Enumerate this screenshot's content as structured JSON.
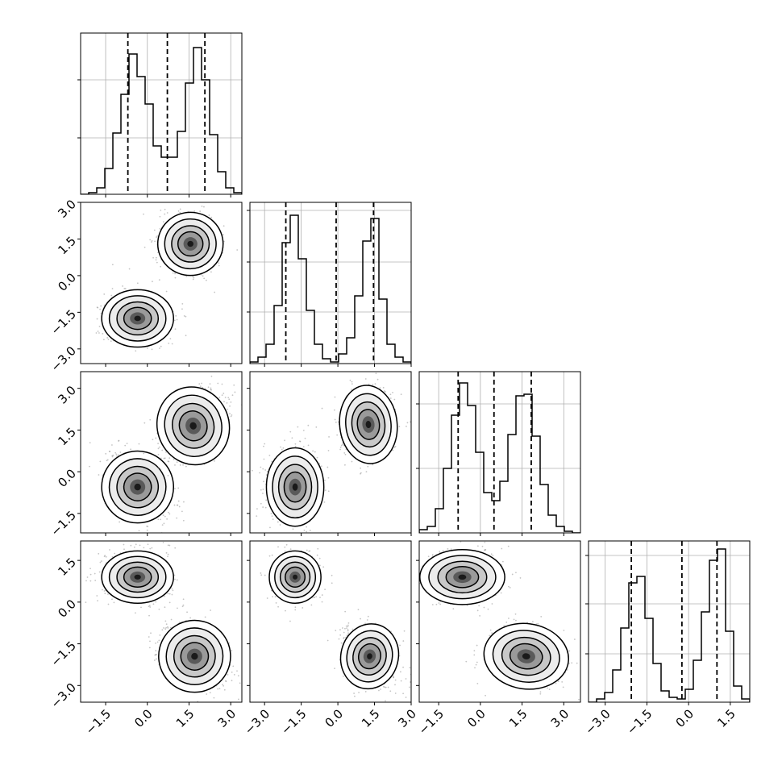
{
  "chart_data": {
    "type": "corner",
    "parameters": 4,
    "colors": {
      "frame": "#000000",
      "grid": "#b0b0b0",
      "hist": "#000000",
      "points": "#7f7f7f"
    },
    "grid": true,
    "quantile_lines": "dashed",
    "histograms": [
      {
        "param": 0,
        "x_range": [
          -2.4,
          3.4
        ],
        "y_range": [
          0,
          1.0
        ],
        "edges": [
          -2.4,
          -2.11,
          -1.82,
          -1.53,
          -1.24,
          -0.95,
          -0.66,
          -0.37,
          -0.08,
          0.21,
          0.5,
          0.79,
          1.08,
          1.37,
          1.66,
          1.95,
          2.24,
          2.53,
          2.82,
          3.11,
          3.4
        ],
        "counts": [
          0.0,
          0.01,
          0.04,
          0.16,
          0.38,
          0.62,
          0.87,
          0.73,
          0.56,
          0.3,
          0.23,
          0.23,
          0.39,
          0.69,
          0.91,
          0.71,
          0.37,
          0.14,
          0.04,
          0.01
        ],
        "quantiles": [
          -0.7,
          0.72,
          2.07
        ],
        "ticks": [
          -1.5,
          0.0,
          1.5,
          3.0
        ],
        "tick_labels": [
          "−1.5",
          "0.0",
          "1.5",
          "3.0"
        ],
        "y_ticks": [
          0.35,
          0.71
        ],
        "x_ticklabels_shown": false
      },
      {
        "param": 1,
        "x_range": [
          -3.6,
          3.0
        ],
        "y_range": [
          0,
          1.0
        ],
        "edges": [
          -3.6,
          -3.27,
          -2.94,
          -2.61,
          -2.28,
          -1.95,
          -1.62,
          -1.29,
          -0.96,
          -0.63,
          -0.3,
          0.03,
          0.36,
          0.69,
          1.02,
          1.35,
          1.68,
          2.01,
          2.34,
          2.67,
          3.0
        ],
        "counts": [
          0.01,
          0.04,
          0.12,
          0.36,
          0.75,
          0.92,
          0.65,
          0.33,
          0.12,
          0.03,
          0.01,
          0.06,
          0.16,
          0.42,
          0.76,
          0.9,
          0.4,
          0.12,
          0.04,
          0.01
        ],
        "quantiles": [
          -2.13,
          -0.07,
          1.46
        ],
        "ticks": [
          -3.0,
          -1.5,
          0.0,
          1.5,
          3.0
        ],
        "tick_labels": [
          "−3.0",
          "−1.5",
          "0.0",
          "1.5",
          "3.0"
        ],
        "y_ticks": [
          0.32,
          0.63,
          0.95
        ],
        "x_ticklabels_shown": false
      },
      {
        "param": 2,
        "x_range": [
          -2.2,
          3.6
        ],
        "y_range": [
          0,
          1.0
        ],
        "edges": [
          -2.2,
          -1.91,
          -1.62,
          -1.33,
          -1.04,
          -0.75,
          -0.46,
          -0.17,
          0.12,
          0.41,
          0.7,
          0.99,
          1.28,
          1.57,
          1.86,
          2.15,
          2.44,
          2.73,
          3.02,
          3.31,
          3.6
        ],
        "counts": [
          0.02,
          0.04,
          0.15,
          0.4,
          0.73,
          0.93,
          0.79,
          0.5,
          0.25,
          0.2,
          0.32,
          0.61,
          0.85,
          0.86,
          0.6,
          0.3,
          0.11,
          0.04,
          0.01,
          0.0
        ],
        "quantiles": [
          -0.8,
          0.49,
          1.83
        ],
        "ticks": [
          -1.5,
          0.0,
          1.5,
          3.0
        ],
        "tick_labels": [
          "−1.5",
          "0.0",
          "1.5",
          "3.0"
        ],
        "y_ticks": [
          0.4,
          0.8
        ],
        "x_ticklabels_shown": false
      },
      {
        "param": 3,
        "x_range": [
          -3.6,
          2.2
        ],
        "y_range": [
          0,
          1.0
        ],
        "edges": [
          -3.6,
          -3.31,
          -3.02,
          -2.73,
          -2.44,
          -2.15,
          -1.86,
          -1.57,
          -1.28,
          -0.99,
          -0.7,
          -0.41,
          -0.12,
          0.17,
          0.46,
          0.75,
          1.04,
          1.33,
          1.62,
          1.91,
          2.2
        ],
        "counts": [
          0.0,
          0.02,
          0.06,
          0.2,
          0.46,
          0.74,
          0.78,
          0.52,
          0.24,
          0.07,
          0.03,
          0.02,
          0.08,
          0.26,
          0.56,
          0.88,
          0.95,
          0.44,
          0.1,
          0.02
        ],
        "quantiles": [
          -2.06,
          -0.24,
          1.02
        ],
        "ticks": [
          -3.0,
          -1.5,
          0.0,
          1.5
        ],
        "tick_labels": [
          "−3.0",
          "−1.5",
          "0.0",
          "1.5"
        ],
        "y_ticks": [
          0.3,
          0.61,
          0.91
        ],
        "x_ticklabels_shown": true
      }
    ],
    "scatter_panels": [
      {
        "row": 1,
        "col": 0,
        "x_range": [
          -2.4,
          3.4
        ],
        "y_range": [
          -3.6,
          3.0
        ],
        "clusters": [
          {
            "x": -0.35,
            "y": -1.75,
            "sx": 0.55,
            "sy": 0.5,
            "rho": 0.0
          },
          {
            "x": 1.55,
            "y": 1.3,
            "sx": 0.5,
            "sy": 0.55,
            "rho": 0.0
          }
        ],
        "y_ticks": [
          -3.0,
          -1.5,
          0.0,
          1.5,
          3.0
        ],
        "y_tick_labels": [
          "−3.0",
          "−1.5",
          "0.0",
          "1.5",
          "3.0"
        ]
      },
      {
        "row": 2,
        "col": 0,
        "x_range": [
          -2.4,
          3.4
        ],
        "y_range": [
          -2.2,
          3.6
        ],
        "clusters": [
          {
            "x": -0.35,
            "y": -0.55,
            "sx": 0.55,
            "sy": 0.55,
            "rho": -0.35
          },
          {
            "x": 1.65,
            "y": 1.65,
            "sx": 0.55,
            "sy": 0.6,
            "rho": 0.45
          }
        ],
        "y_ticks": [
          -1.5,
          0.0,
          1.5,
          3.0
        ],
        "y_tick_labels": [
          "−1.5",
          "0.0",
          "1.5",
          "3.0"
        ]
      },
      {
        "row": 2,
        "col": 1,
        "x_range": [
          -3.6,
          3.0
        ],
        "y_range": [
          -2.2,
          3.6
        ],
        "clusters": [
          {
            "x": -1.75,
            "y": -0.55,
            "sx": 0.5,
            "sy": 0.6,
            "rho": 0.0
          },
          {
            "x": 1.25,
            "y": 1.7,
            "sx": 0.5,
            "sy": 0.6,
            "rho": 0.15
          }
        ]
      },
      {
        "row": 3,
        "col": 0,
        "x_range": [
          -2.4,
          3.4
        ],
        "y_range": [
          -3.6,
          2.2
        ],
        "clusters": [
          {
            "x": -0.35,
            "y": 0.9,
            "sx": 0.55,
            "sy": 0.4,
            "rho": 0.0
          },
          {
            "x": 1.7,
            "y": -1.95,
            "sx": 0.55,
            "sy": 0.55,
            "rho": -0.35
          }
        ],
        "y_ticks": [
          -3.0,
          -1.5,
          0.0,
          1.5
        ],
        "y_tick_labels": [
          "−3.0",
          "−1.5",
          "0.0",
          "1.5"
        ],
        "x_ticks": [
          -1.5,
          0.0,
          1.5,
          3.0
        ],
        "x_tick_labels": [
          "−1.5",
          "0.0",
          "1.5",
          "3.0"
        ]
      },
      {
        "row": 3,
        "col": 1,
        "x_range": [
          -3.6,
          3.0
        ],
        "y_range": [
          -3.6,
          2.2
        ],
        "clusters": [
          {
            "x": -1.75,
            "y": 0.9,
            "sx": 0.45,
            "sy": 0.4,
            "rho": 0.0
          },
          {
            "x": 1.3,
            "y": -1.95,
            "sx": 0.5,
            "sy": 0.5,
            "rho": -0.35
          }
        ],
        "x_ticks": [
          -3.0,
          -1.5,
          0.0,
          1.5,
          3.0
        ],
        "x_tick_labels": [
          "−3.0",
          "−1.5",
          "0.0",
          "1.5",
          "3.0"
        ]
      },
      {
        "row": 3,
        "col": 2,
        "x_range": [
          -2.2,
          3.6
        ],
        "y_range": [
          -3.6,
          2.2
        ],
        "clusters": [
          {
            "x": -0.65,
            "y": 0.9,
            "sx": 0.65,
            "sy": 0.42,
            "rho": 0.0
          },
          {
            "x": 1.65,
            "y": -1.95,
            "sx": 0.65,
            "sy": 0.5,
            "rho": -0.2
          }
        ],
        "x_ticks": [
          -1.5,
          0.0,
          1.5,
          3.0
        ],
        "x_tick_labels": [
          "−1.5",
          "0.0",
          "1.5",
          "3.0"
        ]
      }
    ]
  }
}
